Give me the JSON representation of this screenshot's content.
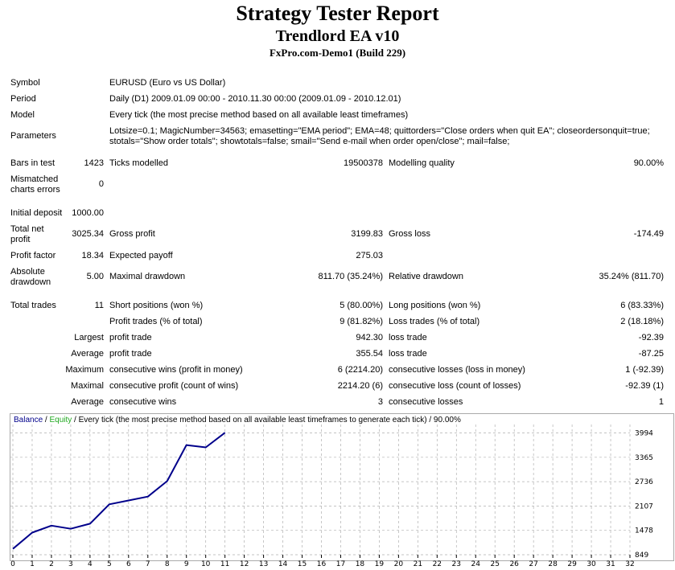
{
  "report": {
    "title": "Strategy Tester Report",
    "subtitle": "Trendlord EA v10",
    "server": "FxPro.com-Demo1 (Build 229)"
  },
  "info": {
    "symbol_label": "Symbol",
    "symbol_value": "EURUSD (Euro vs US Dollar)",
    "period_label": "Period",
    "period_value": "Daily (D1) 2009.01.09 00:00 - 2010.11.30 00:00 (2009.01.09 - 2010.12.01)",
    "model_label": "Model",
    "model_value": "Every tick (the most precise method based on all available least timeframes)",
    "parameters_label": "Parameters",
    "parameters_value": "Lotsize=0.1; MagicNumber=34563; emasetting=\"EMA period\"; EMA=48; quittorders=\"Close orders when quit EA\"; closeordersonquit=true; stotals=\"Show order totals\"; showtotals=false; smail=\"Send e-mail when order open/close\"; mail=false;"
  },
  "stats": {
    "bars_label": "Bars in test",
    "bars_value": "1423",
    "ticks_label": "Ticks modelled",
    "ticks_value": "19500378",
    "quality_label": "Modelling quality",
    "quality_value": "90.00%",
    "mismatch_label": "Mismatched charts errors",
    "mismatch_value": "0",
    "deposit_label": "Initial deposit",
    "deposit_value": "1000.00",
    "net_label": "Total net profit",
    "net_value": "3025.34",
    "gross_profit_label": "Gross profit",
    "gross_profit_value": "3199.83",
    "gross_loss_label": "Gross loss",
    "gross_loss_value": "-174.49",
    "pf_label": "Profit factor",
    "pf_value": "18.34",
    "payoff_label": "Expected payoff",
    "payoff_value": "275.03",
    "abs_dd_label": "Absolute drawdown",
    "abs_dd_value": "5.00",
    "max_dd_label": "Maximal drawdown",
    "max_dd_value": "811.70 (35.24%)",
    "rel_dd_label": "Relative drawdown",
    "rel_dd_value": "35.24% (811.70)",
    "trades_label": "Total trades",
    "trades_value": "11",
    "short_label": "Short positions (won %)",
    "short_value": "5 (80.00%)",
    "long_label": "Long positions (won %)",
    "long_value": "6 (83.33%)",
    "profit_trades_label": "Profit trades (% of total)",
    "profit_trades_value": "9 (81.82%)",
    "loss_trades_label": "Loss trades (% of total)",
    "loss_trades_value": "2 (18.18%)",
    "largest_label": "Largest",
    "largest_profit_label": "profit trade",
    "largest_profit_value": "942.30",
    "largest_loss_label": "loss trade",
    "largest_loss_value": "-92.39",
    "average_label": "Average",
    "average_profit_label": "profit trade",
    "average_profit_value": "355.54",
    "average_loss_label": "loss trade",
    "average_loss_value": "-87.25",
    "maximum_label": "Maximum",
    "max_wins_label": "consecutive wins (profit in money)",
    "max_wins_value": "6 (2214.20)",
    "max_losses_label": "consecutive losses (loss in money)",
    "max_losses_value": "1 (-92.39)",
    "maximal_label": "Maximal",
    "maximal_profit_label": "consecutive profit (count of wins)",
    "maximal_profit_value": "2214.20 (6)",
    "maximal_loss_label": "consecutive loss (count of losses)",
    "maximal_loss_value": "-92.39 (1)",
    "avg2_label": "Average",
    "avg_wins_label": "consecutive wins",
    "avg_wins_value": "3",
    "avg_losses_label": "consecutive losses",
    "avg_losses_value": "1"
  },
  "chart_legend": {
    "balance": "Balance",
    "sep1": " / ",
    "equity": "Equity",
    "rest": " / Every tick (the most precise method based on all available least timeframes to generate each tick) / 90.00%"
  },
  "chart_data": {
    "type": "line",
    "xlabel": "",
    "ylabel": "",
    "x_ticks": [
      0,
      1,
      2,
      3,
      4,
      5,
      6,
      7,
      8,
      9,
      10,
      11,
      12,
      13,
      14,
      15,
      16,
      17,
      18,
      19,
      20,
      21,
      22,
      23,
      24,
      25,
      26,
      27,
      28,
      29,
      30,
      31,
      32
    ],
    "y_ticks": [
      849,
      1478,
      2107,
      2736,
      3365,
      3994
    ],
    "xlim": [
      0,
      32
    ],
    "ylim": [
      849,
      4150
    ],
    "grid": true,
    "series": [
      {
        "name": "Balance",
        "color": "#00008b",
        "x": [
          0,
          1,
          2,
          3,
          4,
          5,
          6,
          7,
          8,
          9,
          10,
          11
        ],
        "y": [
          1000,
          1420,
          1600,
          1520,
          1650,
          2150,
          2250,
          2350,
          2750,
          3680,
          3620,
          4000
        ]
      }
    ]
  }
}
